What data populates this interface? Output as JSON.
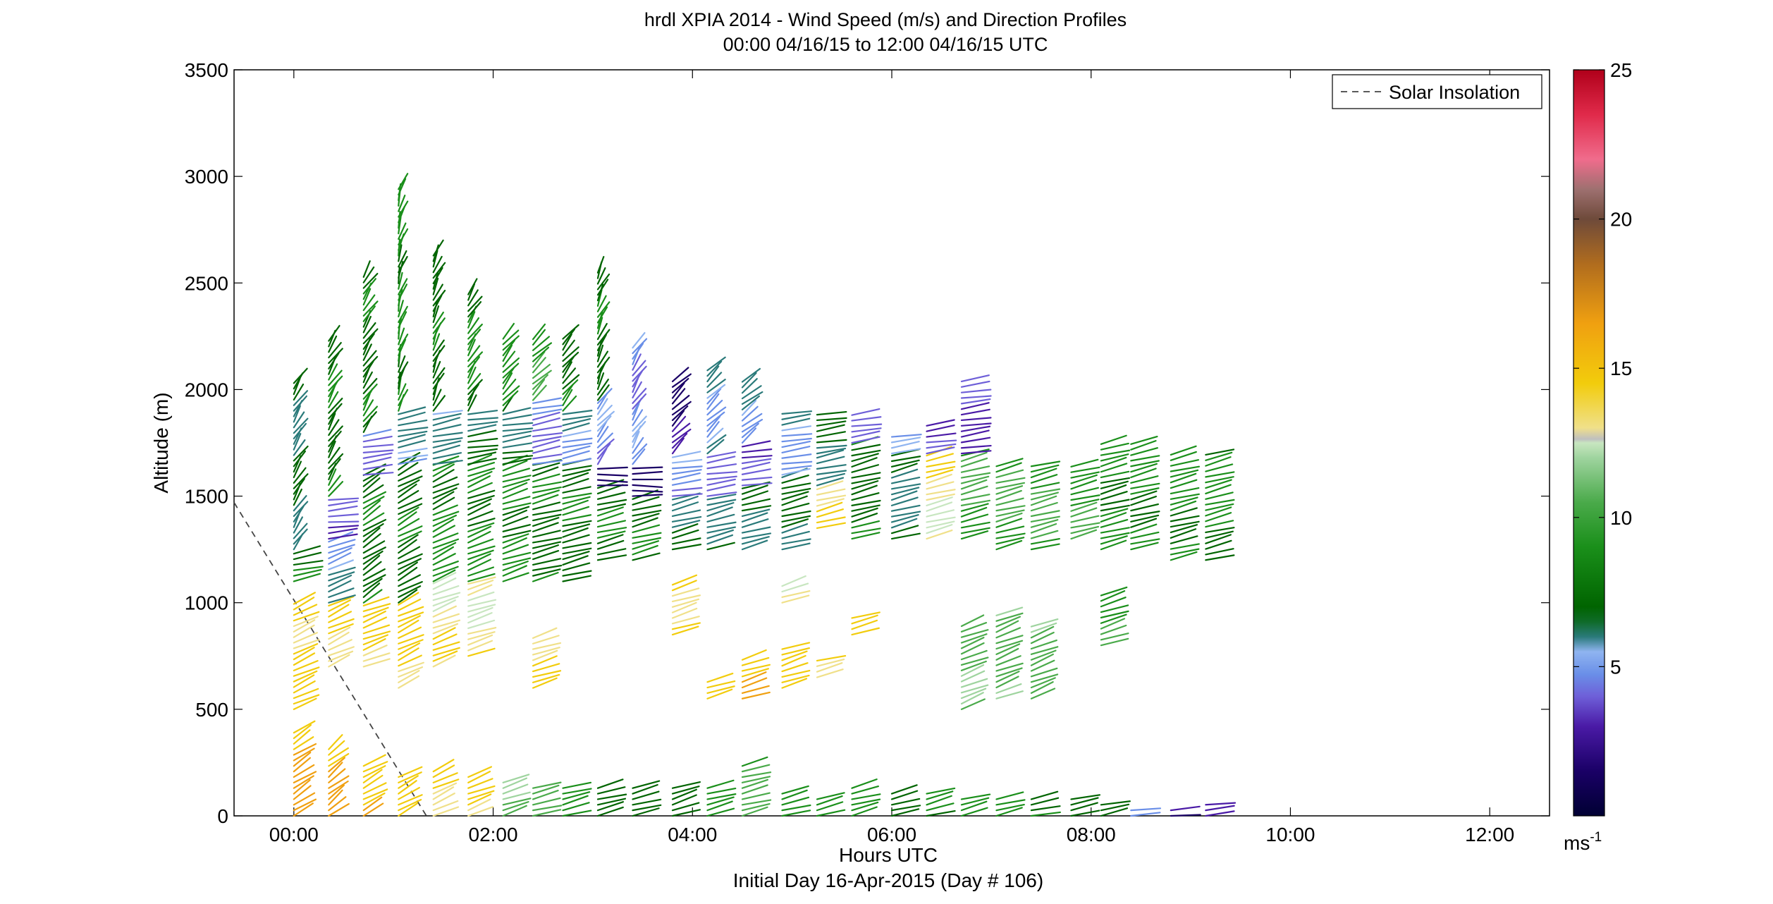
{
  "chart_data": {
    "type": "scatter",
    "title": "hrdl XPIA 2014 - Wind Speed (m/s) and Direction Profiles",
    "subtitle": "00:00 04/16/15 to 12:00 04/16/15  UTC",
    "xlabel": "Hours UTC",
    "xlabel2": "Initial Day 16-Apr-2015 (Day # 106)",
    "ylabel": "Altitude (m)",
    "xlim": [
      -0.6,
      12.6
    ],
    "ylim": [
      0,
      3500
    ],
    "x_ticks": [
      0,
      2,
      4,
      6,
      8,
      10,
      12
    ],
    "x_tick_labels": [
      "00:00",
      "02:00",
      "04:00",
      "06:00",
      "08:00",
      "10:00",
      "12:00"
    ],
    "y_ticks": [
      0,
      500,
      1000,
      1500,
      2000,
      2500,
      3000,
      3500
    ],
    "y_tick_labels": [
      "0",
      "500",
      "1000",
      "1500",
      "2000",
      "2500",
      "3000",
      "3500"
    ],
    "grid": false,
    "legend": {
      "position": "top-right",
      "entries": [
        "Solar Insolation"
      ]
    },
    "colorbar": {
      "range": [
        0,
        25
      ],
      "ticks": [
        5,
        10,
        15,
        20,
        25
      ],
      "tick_labels": [
        "5",
        "10",
        "15",
        "20",
        "25"
      ],
      "unit": "ms",
      "unit_exp": "-1"
    },
    "solar_insolation": {
      "x": [
        -0.6,
        1.33
      ],
      "y": [
        1470,
        0
      ]
    },
    "wind_profiles": [
      {
        "t": 0.0,
        "segments": [
          [
            0,
            400,
            220,
            17
          ],
          [
            500,
            1000,
            230,
            15
          ],
          [
            1100,
            1250,
            250,
            8
          ],
          [
            1250,
            2050,
            200,
            7
          ]
        ]
      },
      {
        "t": 0.35,
        "segments": [
          [
            0,
            320,
            215,
            17
          ],
          [
            700,
            1000,
            230,
            15
          ],
          [
            1000,
            1300,
            235,
            6
          ],
          [
            1300,
            1500,
            260,
            4
          ],
          [
            1500,
            2250,
            200,
            8
          ]
        ]
      },
      {
        "t": 0.7,
        "segments": [
          [
            0,
            250,
            225,
            16
          ],
          [
            700,
            1000,
            235,
            15
          ],
          [
            1000,
            1600,
            220,
            8
          ],
          [
            1600,
            1800,
            255,
            5
          ],
          [
            1800,
            2550,
            200,
            8
          ]
        ]
      },
      {
        "t": 1.05,
        "segments": [
          [
            0,
            200,
            225,
            16
          ],
          [
            600,
            1000,
            230,
            15
          ],
          [
            1000,
            1650,
            225,
            8
          ],
          [
            1650,
            1900,
            250,
            6
          ],
          [
            1900,
            2950,
            190,
            9
          ]
        ]
      },
      {
        "t": 1.4,
        "segments": [
          [
            0,
            220,
            230,
            15
          ],
          [
            700,
            1100,
            235,
            14
          ],
          [
            1100,
            1650,
            230,
            9
          ],
          [
            1650,
            1900,
            250,
            6
          ],
          [
            1900,
            2650,
            195,
            8
          ]
        ]
      },
      {
        "t": 1.75,
        "segments": [
          [
            0,
            200,
            235,
            15
          ],
          [
            750,
            1100,
            240,
            14
          ],
          [
            1100,
            1650,
            235,
            9
          ],
          [
            1650,
            1900,
            255,
            7
          ],
          [
            1900,
            2450,
            200,
            9
          ]
        ]
      },
      {
        "t": 2.1,
        "segments": [
          [
            0,
            180,
            240,
            11
          ],
          [
            1100,
            1650,
            240,
            9
          ],
          [
            1650,
            1900,
            255,
            7
          ],
          [
            1900,
            2250,
            205,
            9
          ]
        ]
      },
      {
        "t": 2.4,
        "segments": [
          [
            0,
            150,
            245,
            10
          ],
          [
            600,
            850,
            240,
            15
          ],
          [
            1100,
            1650,
            245,
            8
          ],
          [
            1650,
            1950,
            250,
            5
          ],
          [
            1950,
            2250,
            210,
            10
          ]
        ]
      },
      {
        "t": 2.7,
        "segments": [
          [
            0,
            130,
            245,
            9
          ],
          [
            1100,
            1650,
            245,
            8
          ],
          [
            1650,
            1900,
            250,
            6
          ],
          [
            1900,
            2250,
            205,
            8
          ]
        ]
      },
      {
        "t": 3.05,
        "segments": [
          [
            0,
            130,
            245,
            8
          ],
          [
            1200,
            1550,
            245,
            8
          ],
          [
            1550,
            1650,
            270,
            3
          ],
          [
            1650,
            1950,
            205,
            5
          ],
          [
            1950,
            2550,
            195,
            8
          ]
        ]
      },
      {
        "t": 3.4,
        "segments": [
          [
            0,
            130,
            245,
            8
          ],
          [
            1200,
            1500,
            245,
            8
          ],
          [
            1500,
            1650,
            270,
            3
          ],
          [
            1650,
            2200,
            200,
            5
          ]
        ]
      },
      {
        "t": 3.8,
        "segments": [
          [
            0,
            130,
            240,
            8
          ],
          [
            850,
            1100,
            240,
            15
          ],
          [
            1250,
            1500,
            245,
            7
          ],
          [
            1500,
            1700,
            255,
            5
          ],
          [
            1700,
            2050,
            210,
            3
          ]
        ]
      },
      {
        "t": 4.15,
        "segments": [
          [
            0,
            150,
            245,
            9
          ],
          [
            550,
            650,
            240,
            15
          ],
          [
            1250,
            1500,
            245,
            7
          ],
          [
            1500,
            1700,
            255,
            4
          ],
          [
            1700,
            2100,
            210,
            6
          ]
        ]
      },
      {
        "t": 4.5,
        "segments": [
          [
            0,
            250,
            245,
            10
          ],
          [
            550,
            750,
            240,
            16
          ],
          [
            1250,
            1550,
            245,
            7
          ],
          [
            1550,
            1750,
            255,
            4
          ],
          [
            1750,
            2050,
            215,
            6
          ]
        ]
      },
      {
        "t": 4.9,
        "segments": [
          [
            0,
            120,
            245,
            9
          ],
          [
            600,
            800,
            240,
            16
          ],
          [
            1000,
            1100,
            240,
            13
          ],
          [
            1250,
            1600,
            245,
            7
          ],
          [
            1600,
            1900,
            255,
            6
          ]
        ]
      },
      {
        "t": 5.25,
        "segments": [
          [
            0,
            100,
            245,
            9
          ],
          [
            650,
            750,
            245,
            15
          ],
          [
            1350,
            1550,
            245,
            14
          ],
          [
            1550,
            1700,
            250,
            7
          ],
          [
            1700,
            1900,
            255,
            7
          ]
        ]
      },
      {
        "t": 5.6,
        "segments": [
          [
            0,
            130,
            245,
            10
          ],
          [
            850,
            950,
            245,
            15
          ],
          [
            1300,
            1750,
            245,
            8
          ],
          [
            1750,
            1900,
            255,
            4
          ]
        ]
      },
      {
        "t": 6.0,
        "segments": [
          [
            0,
            120,
            245,
            8
          ],
          [
            1300,
            1700,
            245,
            7
          ],
          [
            1700,
            1800,
            255,
            5
          ]
        ]
      },
      {
        "t": 6.35,
        "segments": [
          [
            0,
            110,
            245,
            9
          ],
          [
            1300,
            1700,
            245,
            14
          ],
          [
            1700,
            1850,
            255,
            4
          ]
        ]
      },
      {
        "t": 6.7,
        "segments": [
          [
            0,
            100,
            245,
            9
          ],
          [
            500,
            900,
            235,
            11
          ],
          [
            1300,
            1700,
            245,
            10
          ],
          [
            1700,
            2050,
            255,
            4
          ]
        ]
      },
      {
        "t": 7.05,
        "segments": [
          [
            0,
            90,
            245,
            8
          ],
          [
            550,
            950,
            235,
            11
          ],
          [
            1250,
            1650,
            245,
            10
          ]
        ]
      },
      {
        "t": 7.4,
        "segments": [
          [
            0,
            80,
            250,
            8
          ],
          [
            550,
            900,
            235,
            11
          ],
          [
            1250,
            1650,
            245,
            10
          ]
        ]
      },
      {
        "t": 7.8,
        "segments": [
          [
            0,
            80,
            250,
            8
          ],
          [
            1300,
            1650,
            245,
            10
          ]
        ]
      },
      {
        "t": 8.1,
        "segments": [
          [
            0,
            70,
            250,
            8
          ],
          [
            800,
            1050,
            240,
            10
          ],
          [
            1250,
            1750,
            245,
            9
          ]
        ]
      },
      {
        "t": 8.4,
        "segments": [
          [
            0,
            50,
            255,
            6
          ],
          [
            1250,
            1750,
            245,
            9
          ]
        ]
      },
      {
        "t": 8.8,
        "segments": [
          [
            0,
            50,
            260,
            3
          ],
          [
            1200,
            1700,
            245,
            9
          ]
        ]
      },
      {
        "t": 9.15,
        "segments": [
          [
            0,
            60,
            260,
            3
          ],
          [
            1200,
            1700,
            245,
            9
          ]
        ]
      }
    ]
  }
}
